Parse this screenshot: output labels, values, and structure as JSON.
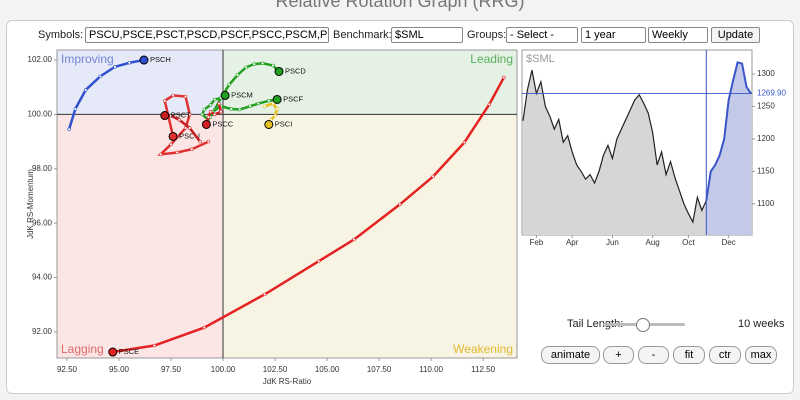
{
  "header": {
    "title": "Relative Rotation Graph (RRG)"
  },
  "controls": {
    "symbols_label": "Symbols:",
    "symbols_value": "PSCU,PSCE,PSCT,PSCD,PSCF,PSCC,PSCM,PS(",
    "benchmark_label": "Benchmark:",
    "benchmark_value": "$SML",
    "groups_label": "Groups:",
    "groups_value": "- Select -",
    "period_value": "1 year",
    "frequency_value": "Weekly",
    "update_button": "Update",
    "tail_length_label": "Tail Length:",
    "tail_length": {
      "value": 10,
      "label": "10 weeks"
    },
    "buttons": [
      "animate",
      "+",
      "-",
      "fit",
      "ctr",
      "max"
    ]
  },
  "chart_data": [
    {
      "type": "rrg",
      "x_label": "JdK RS-Ratio",
      "y_label": "JdK RS-Momentum",
      "quadrants": [
        "Improving",
        "Leading",
        "Lagging",
        "Weakening"
      ],
      "xlim": [
        92.02,
        114.13
      ],
      "ylim": [
        91.04,
        102.37
      ],
      "center": [
        100,
        100
      ],
      "xticks": [
        {
          "value": 92.5,
          "label": "92.50"
        },
        {
          "value": 95,
          "label": "95.00"
        },
        {
          "value": 97.5,
          "label": "97.50"
        },
        {
          "value": 100,
          "label": "100.00"
        },
        {
          "value": 102.5,
          "label": "102.50"
        },
        {
          "value": 105,
          "label": "105.00"
        },
        {
          "value": 107.5,
          "label": "107.50"
        },
        {
          "value": 110,
          "label": "110.00"
        },
        {
          "value": 112.5,
          "label": "112.50"
        }
      ],
      "yticks": [
        {
          "value": 92,
          "label": "92.00"
        },
        {
          "value": 94,
          "label": "94.00"
        },
        {
          "value": 96,
          "label": "96.00"
        },
        {
          "value": 98,
          "label": "98.00"
        },
        {
          "value": 100,
          "label": "100.00"
        },
        {
          "value": 102,
          "label": "102.00"
        }
      ],
      "series": [
        {
          "name": "PSCH",
          "color": "#3050d0",
          "x": [
            92.6,
            92.9,
            93.4,
            94.1,
            94.8,
            95.5,
            96.2
          ],
          "y": [
            99.45,
            100.2,
            100.9,
            101.4,
            101.75,
            101.9,
            102.0
          ]
        },
        {
          "name": "PSCE",
          "color": "#e52222",
          "x": [
            113.5,
            112.8,
            111.6,
            110.1,
            108.5,
            106.3,
            104.6,
            102.0,
            99.1,
            96.7,
            94.7
          ],
          "y": [
            101.36,
            100.37,
            98.97,
            97.72,
            96.69,
            95.4,
            94.6,
            93.38,
            92.16,
            91.5,
            91.26
          ]
        },
        {
          "name": "PSCD",
          "color": "#22a022",
          "x": [
            99.4,
            99.6,
            99.9,
            100.3,
            100.7,
            101.1,
            101.5,
            101.9,
            102.4,
            102.69
          ],
          "y": [
            99.9,
            100.18,
            100.6,
            101.1,
            101.45,
            101.73,
            101.85,
            101.88,
            101.8,
            101.58
          ]
        },
        {
          "name": "PSCF",
          "color": "#22a022",
          "x": [
            99.5,
            99.9,
            100.4,
            100.8,
            101.3,
            101.7,
            102.2,
            102.6
          ],
          "y": [
            100.1,
            100.3,
            100.2,
            100.18,
            100.3,
            100.4,
            100.5,
            100.55
          ]
        },
        {
          "name": "PSCM",
          "color": "#22a022",
          "x": [
            99.3,
            99.0,
            99.1,
            99.4,
            99.6,
            99.9,
            100.1
          ],
          "y": [
            99.8,
            100.0,
            100.18,
            100.35,
            100.55,
            100.6,
            100.7
          ]
        },
        {
          "name": "PSCI",
          "color": "#e8c020",
          "x": [
            102.0,
            102.4,
            102.6,
            102.5,
            102.3,
            102.2
          ],
          "y": [
            100.3,
            100.4,
            100.2,
            99.95,
            99.8,
            99.63
          ]
        },
        {
          "name": "PSCC",
          "color": "#d42020",
          "x": [
            99.8,
            99.9,
            99.6,
            99.4,
            99.3,
            99.2
          ],
          "y": [
            100.4,
            100.1,
            100.0,
            100.1,
            99.9,
            99.63
          ]
        },
        {
          "name": "PSCU",
          "color": "#e03030",
          "x": [
            99.3,
            98.5,
            97.8,
            97.0,
            97.5,
            98.2,
            98.4,
            98.2,
            97.6,
            97.2,
            97.6
          ],
          "y": [
            99.0,
            98.72,
            98.6,
            98.53,
            98.9,
            99.5,
            100.0,
            100.66,
            100.7,
            100.5,
            99.19
          ]
        },
        {
          "name": "PSCT",
          "color": "#c82020",
          "x": [
            98.9,
            98.4,
            97.9,
            97.5,
            97.2
          ],
          "y": [
            99.0,
            99.5,
            99.8,
            99.95,
            99.96
          ]
        }
      ]
    },
    {
      "type": "line",
      "title": "$SML",
      "color": "#222222",
      "tail_color": "#3a55c8",
      "values": [
        1228,
        1276,
        1306,
        1270,
        1288,
        1250,
        1235,
        1215,
        1230,
        1195,
        1205,
        1180,
        1160,
        1150,
        1138,
        1145,
        1132,
        1150,
        1175,
        1190,
        1170,
        1200,
        1215,
        1230,
        1245,
        1260,
        1268,
        1255,
        1240,
        1210,
        1160,
        1180,
        1145,
        1165,
        1140,
        1120,
        1100,
        1085,
        1072,
        1110,
        1090,
        1105,
        1150,
        1160,
        1175,
        1200,
        1260,
        1290,
        1318,
        1316,
        1280,
        1269.9
      ],
      "last_label": "1269.90",
      "ylim": [
        1052,
        1337
      ],
      "yticks": [
        1100,
        1150,
        1200,
        1250,
        1300
      ],
      "xticks": [
        {
          "value": 3,
          "label": "Feb"
        },
        {
          "value": 11,
          "label": "Apr"
        },
        {
          "value": 20,
          "label": "Jun"
        },
        {
          "value": 29,
          "label": "Aug"
        },
        {
          "value": 37,
          "label": "Oct"
        },
        {
          "value": 46,
          "label": "Dec"
        }
      ]
    }
  ]
}
